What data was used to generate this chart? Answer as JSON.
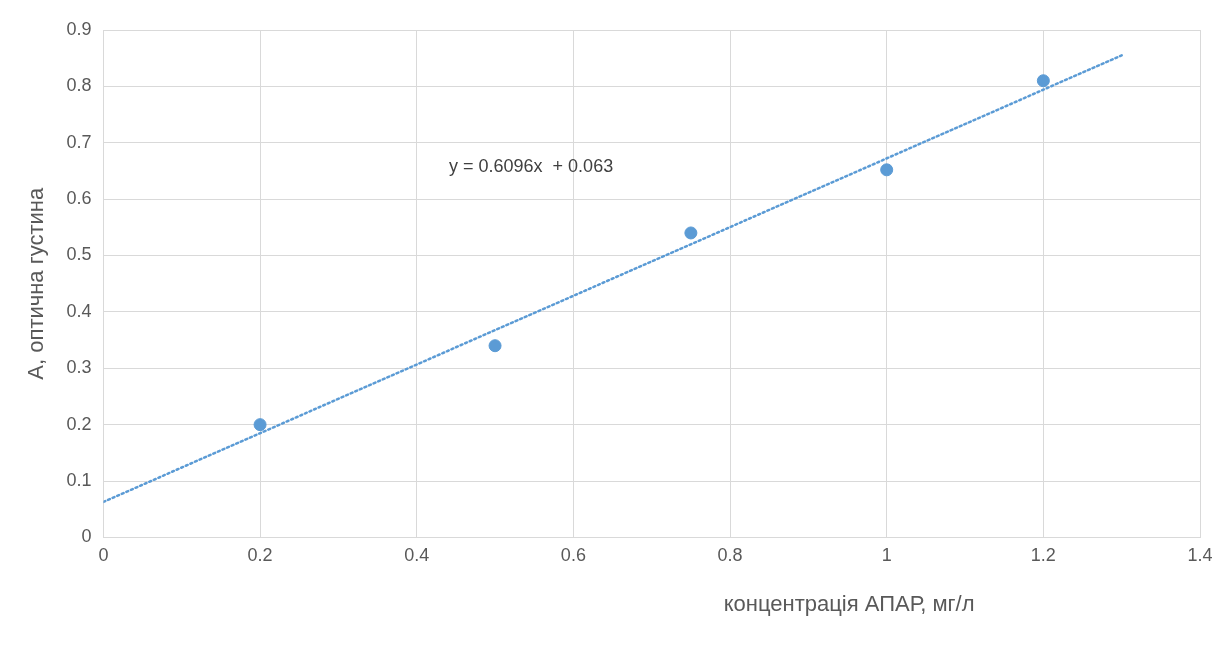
{
  "chart_data": {
    "type": "scatter",
    "xlabel": "концентрація АПАР, мг/л",
    "ylabel": "А, оптична густина",
    "x": [
      0.2,
      0.5,
      0.75,
      1,
      1.2
    ],
    "series": [
      {
        "type": "scatter",
        "color": "#5b9bd5",
        "marker": "circle",
        "values": [
          0.2,
          0.34,
          0.54,
          0.652,
          0.81
        ]
      },
      {
        "type": "line",
        "color": "#5b9bd5",
        "marker": "none",
        "line_style": "dotted",
        "x": [
          0,
          1.3
        ],
        "values": [
          0.063,
          0.855
        ]
      }
    ],
    "xlim": [
      0,
      1.4
    ],
    "xticks": [
      0,
      0.2,
      0.4,
      0.6,
      0.8,
      1,
      1.2,
      1.4
    ],
    "ylim": [
      0,
      0.9
    ],
    "yticks": [
      0,
      0.1,
      0.2,
      0.3,
      0.4,
      0.5,
      0.6,
      0.7,
      0.8,
      0.9
    ],
    "grid": true,
    "annotations": [
      "y = 0.6096x  + 0.063"
    ]
  }
}
